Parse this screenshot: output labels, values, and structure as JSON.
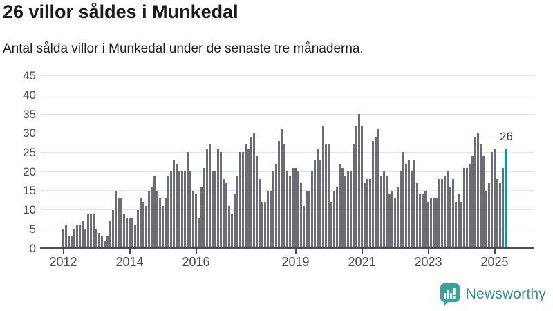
{
  "header": {
    "title": "26 villor såldes i Munkedal",
    "subtitle": "Antal sålda villor i Munkedal under de senaste tre månaderna."
  },
  "chart_data": {
    "type": "bar",
    "title": "26 villor såldes i Munkedal",
    "subtitle": "Antal sålda villor i Munkedal under de senaste tre månaderna.",
    "x_unit": "month",
    "x_start": "2012-01",
    "values": [
      5,
      6,
      3,
      3,
      5,
      6,
      6,
      7,
      5,
      9,
      9,
      9,
      5,
      4,
      3,
      2,
      3,
      7,
      10,
      15,
      13,
      13,
      9,
      8,
      8,
      8,
      6,
      10,
      13,
      12,
      11,
      15,
      16,
      19,
      15,
      13,
      11,
      13,
      19,
      20,
      23,
      22,
      20,
      20,
      20,
      25,
      20,
      15,
      14,
      8,
      16,
      21,
      26,
      27,
      20,
      20,
      26,
      25,
      18,
      17,
      11,
      9,
      14,
      19,
      25,
      25,
      27,
      26,
      29,
      30,
      24,
      18,
      12,
      12,
      15,
      15,
      20,
      22,
      28,
      31,
      27,
      20,
      19,
      21,
      21,
      20,
      17,
      11,
      15,
      15,
      20,
      23,
      26,
      23,
      32,
      27,
      27,
      12,
      15,
      16,
      22,
      21,
      19,
      20,
      20,
      27,
      32,
      35,
      32,
      17,
      18,
      18,
      28,
      29,
      31,
      19,
      20,
      19,
      14,
      15,
      13,
      16,
      20,
      25,
      22,
      23,
      20,
      23,
      17,
      14,
      14,
      15,
      12,
      13,
      13,
      13,
      18,
      18,
      19,
      20,
      16,
      18,
      12,
      14,
      12,
      21,
      21,
      22,
      24,
      29,
      30,
      27,
      24,
      15,
      17,
      25,
      26,
      18,
      17,
      21,
      26
    ],
    "highlight_last": true,
    "highlight_label": "26",
    "y_ticks": [
      0,
      5,
      10,
      15,
      20,
      25,
      30,
      35,
      40,
      45
    ],
    "ylim": [
      0,
      45
    ],
    "x_tick_labels": [
      "2012",
      "2014",
      "2016",
      "2019",
      "2021",
      "2023",
      "2025"
    ],
    "x_tick_month_index": [
      0,
      24,
      48,
      84,
      108,
      132,
      156
    ],
    "grid": true,
    "legend": false,
    "bar_color": "#6c6c75",
    "highlight_color": "#009fa0"
  },
  "branding": {
    "name": "Newsworthy",
    "icon": "newsworthy-speech-bubble-bar-chart-icon",
    "text_color": "#2f918e",
    "icon_color": "#35a29d"
  }
}
